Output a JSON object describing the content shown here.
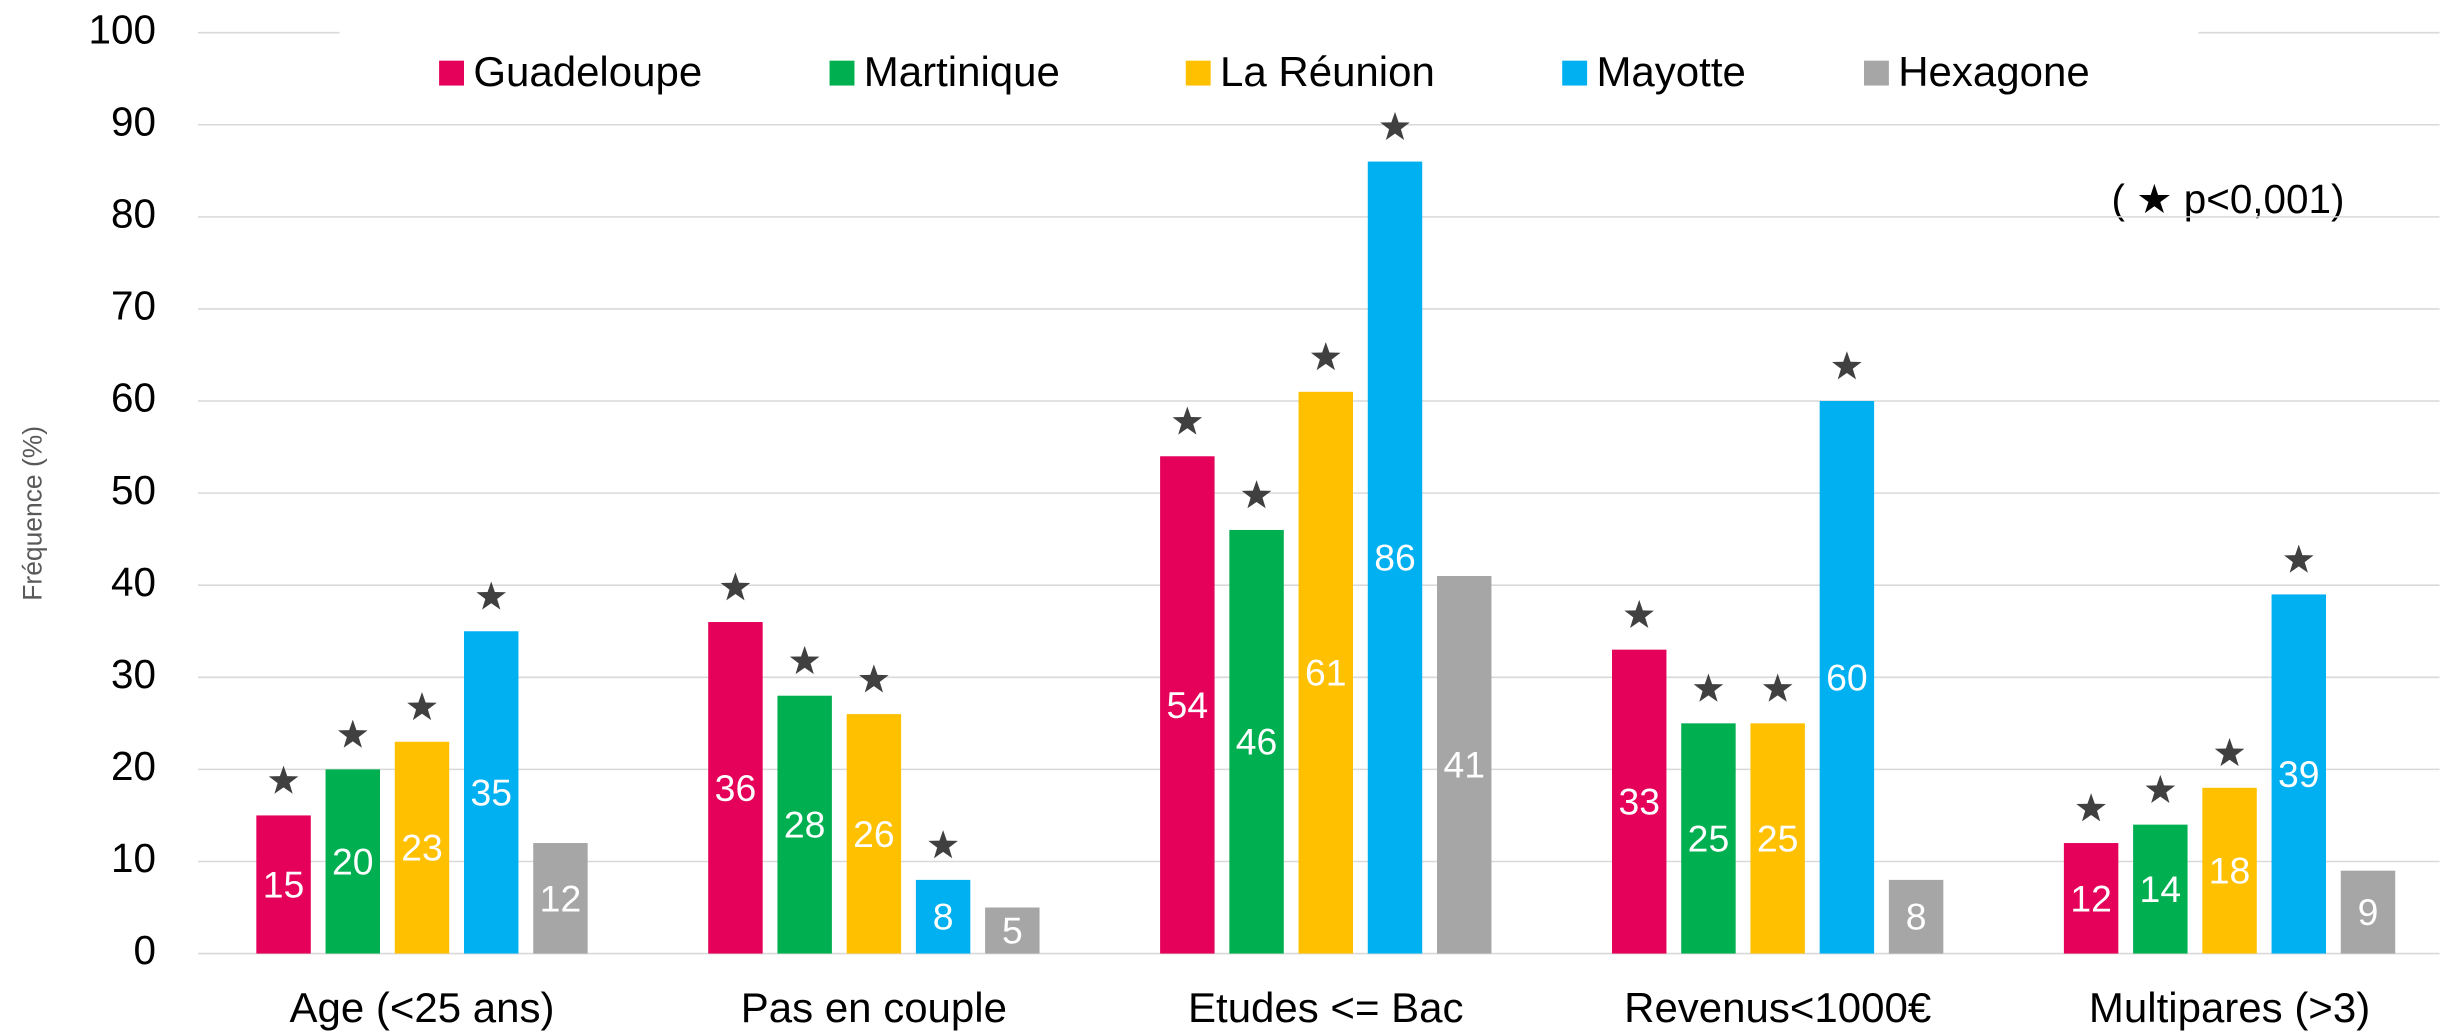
{
  "chart_data": {
    "type": "bar",
    "y_label": "Fréquence (%)",
    "note": "( ★ p<0,001)",
    "categories": [
      "Age (<25 ans)",
      "Pas en couple",
      "Etudes <= Bac",
      "Revenus<1000€",
      "Multipares (>3)"
    ],
    "series": [
      {
        "name": "Guadeloupe",
        "color": "#e5005a",
        "values": [
          15,
          36,
          54,
          33,
          12
        ],
        "significant": [
          true,
          true,
          true,
          true,
          true
        ]
      },
      {
        "name": "Martinique",
        "color": "#00b050",
        "values": [
          20,
          28,
          46,
          25,
          14
        ],
        "significant": [
          true,
          true,
          true,
          true,
          true
        ]
      },
      {
        "name": "La Réunion",
        "color": "#ffc000",
        "values": [
          23,
          26,
          61,
          25,
          18
        ],
        "significant": [
          true,
          true,
          true,
          true,
          true
        ]
      },
      {
        "name": "Mayotte",
        "color": "#00b0f0",
        "values": [
          35,
          8,
          86,
          60,
          39
        ],
        "significant": [
          true,
          true,
          true,
          true,
          true
        ]
      },
      {
        "name": "Hexagone",
        "color": "#a6a6a6",
        "values": [
          12,
          5,
          41,
          8,
          9
        ],
        "significant": [
          false,
          false,
          false,
          false,
          false
        ]
      }
    ],
    "ylim": [
      0,
      100
    ],
    "yticks": [
      0,
      10,
      20,
      30,
      40,
      50,
      60,
      70,
      80,
      90,
      100
    ],
    "grid": true,
    "legend": "top"
  }
}
